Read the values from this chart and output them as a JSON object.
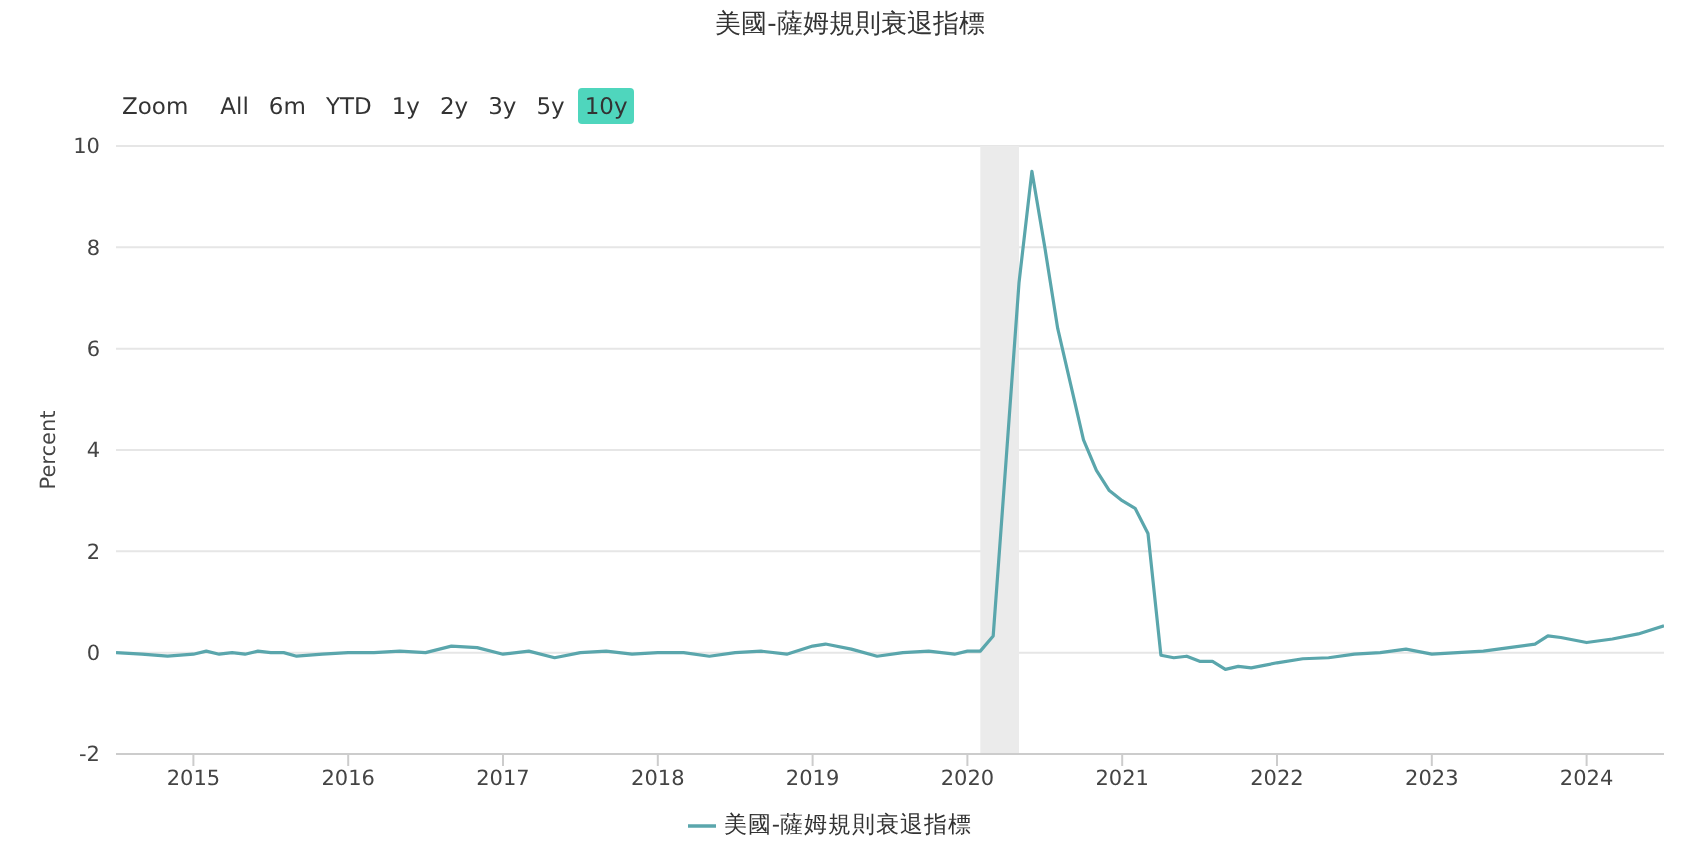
{
  "chart_data": {
    "type": "line",
    "title": "美國-薩姆規則衰退指標",
    "ylabel": "Percent",
    "annotations": [
      "Zoom",
      "All",
      "6m",
      "YTD",
      "1y",
      "2y",
      "3y",
      "5y",
      "10y"
    ],
    "x": [
      "2014-07",
      "2014-09",
      "2014-11",
      "2015-01",
      "2015-02",
      "2015-03",
      "2015-04",
      "2015-05",
      "2015-06",
      "2015-07",
      "2015-08",
      "2015-09",
      "2015-11",
      "2016-01",
      "2016-03",
      "2016-05",
      "2016-07",
      "2016-09",
      "2016-11",
      "2017-01",
      "2017-03",
      "2017-05",
      "2017-07",
      "2017-09",
      "2017-11",
      "2018-01",
      "2018-03",
      "2018-05",
      "2018-07",
      "2018-09",
      "2018-11",
      "2019-01",
      "2019-02",
      "2019-04",
      "2019-06",
      "2019-08",
      "2019-10",
      "2019-12",
      "2020-01",
      "2020-02",
      "2020-03",
      "2020-04",
      "2020-05",
      "2020-06",
      "2020-07",
      "2020-08",
      "2020-09",
      "2020-10",
      "2020-11",
      "2020-12",
      "2021-01",
      "2021-02",
      "2021-03",
      "2021-04",
      "2021-05",
      "2021-06",
      "2021-07",
      "2021-08",
      "2021-09",
      "2021-10",
      "2021-11",
      "2021-12",
      "2022-01",
      "2022-03",
      "2022-05",
      "2022-07",
      "2022-09",
      "2022-11",
      "2023-01",
      "2023-03",
      "2023-05",
      "2023-07",
      "2023-09",
      "2023-10",
      "2023-11",
      "2024-01",
      "2024-03",
      "2024-05",
      "2024-07"
    ],
    "series": [
      {
        "name": "美國-薩姆規則衰退指標",
        "color": "#5aa6ac",
        "values": [
          0.0,
          -0.03,
          -0.07,
          -0.03,
          0.03,
          -0.03,
          0.0,
          -0.03,
          0.03,
          0.0,
          0.0,
          -0.07,
          -0.03,
          0.0,
          0.0,
          0.03,
          0.0,
          0.13,
          0.1,
          -0.03,
          0.03,
          -0.1,
          0.0,
          0.03,
          -0.03,
          0.0,
          0.0,
          -0.07,
          0.0,
          0.03,
          -0.03,
          0.13,
          0.17,
          0.07,
          -0.07,
          0.0,
          0.03,
          -0.03,
          0.03,
          0.03,
          0.33,
          3.8,
          7.3,
          9.5,
          8.0,
          6.4,
          5.3,
          4.2,
          3.6,
          3.2,
          3.0,
          2.85,
          2.35,
          -0.05,
          -0.1,
          -0.07,
          -0.17,
          -0.17,
          -0.33,
          -0.27,
          -0.3,
          -0.25,
          -0.2,
          -0.12,
          -0.1,
          -0.03,
          0.0,
          0.07,
          -0.03,
          0.0,
          0.03,
          0.1,
          0.17,
          0.33,
          0.3,
          0.2,
          0.27,
          0.37,
          0.53
        ]
      }
    ],
    "xlim": [
      "2014-07",
      "2024-07"
    ],
    "xticks": [
      {
        "value": "2015",
        "label": "2015"
      },
      {
        "value": "2016",
        "label": "2016"
      },
      {
        "value": "2017",
        "label": "2017"
      },
      {
        "value": "2018",
        "label": "2018"
      },
      {
        "value": "2019",
        "label": "2019"
      },
      {
        "value": "2020",
        "label": "2020"
      },
      {
        "value": "2021",
        "label": "2021"
      },
      {
        "value": "2022",
        "label": "2022"
      },
      {
        "value": "2023",
        "label": "2023"
      },
      {
        "value": "2024",
        "label": "2024"
      }
    ],
    "ylim": [
      -2,
      10
    ],
    "yticks": [
      -2,
      0,
      2,
      4,
      6,
      8,
      10
    ],
    "bands": [
      {
        "axis": "x",
        "from": "2020-02",
        "to": "2020-05",
        "color": "#ebebeb"
      }
    ],
    "grid": "y",
    "legend": "bottom",
    "marker": "none",
    "line_style": "solid"
  }
}
